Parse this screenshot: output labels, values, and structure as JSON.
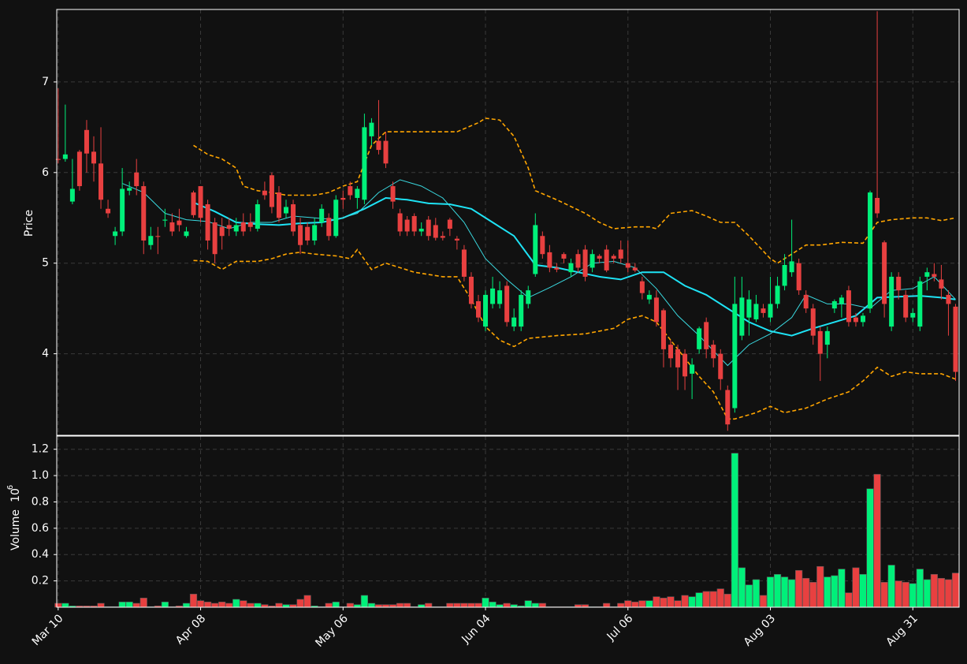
{
  "chart_data": [
    {
      "type": "candlestick",
      "ylabel": "Price",
      "xlim": [
        -0.2,
        126.5
      ],
      "ylim": [
        3.1,
        7.8
      ],
      "yticks": [
        4,
        5,
        6,
        7
      ],
      "grid": true,
      "up_color": "#00f07a",
      "down_color": "#e84040",
      "open": [
        6.15,
        6.15,
        5.68,
        6.23,
        6.47,
        6.23,
        6.1,
        5.6,
        5.3,
        5.35,
        5.8,
        6.0,
        5.85,
        5.2,
        5.3,
        5.47,
        5.45,
        5.47,
        5.3,
        5.78,
        5.85,
        5.65,
        5.45,
        5.4,
        5.42,
        5.35,
        5.45,
        5.45,
        5.38,
        5.8,
        5.97,
        5.78,
        5.55,
        5.65,
        5.42,
        5.4,
        5.25,
        5.45,
        5.5,
        5.3,
        5.72,
        5.85,
        5.72,
        5.7,
        6.4,
        6.35,
        6.35,
        5.85,
        5.55,
        5.48,
        5.52,
        5.35,
        5.48,
        5.42,
        5.3,
        5.48,
        5.27,
        5.15,
        4.85,
        4.58,
        4.3,
        4.55,
        4.55,
        4.75,
        4.3,
        4.3,
        4.55,
        4.88,
        5.3,
        5.12,
        4.95,
        5.1,
        4.9,
        5.1,
        5.15,
        4.95,
        5.08,
        5.15,
        5.08,
        5.15,
        5.0,
        4.95,
        4.8,
        4.6,
        4.62,
        4.48,
        4.1,
        4.05,
        4.0,
        3.78,
        4.05,
        4.35,
        4.1,
        4.0,
        3.6,
        3.4,
        4.2,
        4.4,
        4.38,
        4.5,
        4.4,
        4.55,
        4.75,
        4.9,
        5.0,
        4.65,
        4.5,
        4.25,
        4.1,
        4.5,
        4.55,
        4.7,
        4.4,
        4.35,
        4.5,
        5.72,
        5.23,
        4.3,
        4.85,
        4.65,
        4.4,
        4.3,
        4.85,
        4.88,
        4.82,
        4.65,
        4.52
      ],
      "high": [
        6.93,
        6.75,
        6.15,
        6.25,
        6.58,
        6.4,
        6.5,
        5.7,
        5.4,
        6.05,
        5.9,
        6.15,
        5.9,
        5.4,
        5.4,
        5.6,
        5.55,
        5.6,
        5.4,
        5.8,
        5.85,
        5.7,
        5.5,
        5.5,
        5.5,
        5.5,
        5.55,
        5.55,
        5.7,
        5.9,
        6.0,
        5.85,
        5.7,
        5.7,
        5.5,
        5.45,
        5.5,
        5.65,
        5.55,
        5.75,
        5.8,
        5.9,
        5.85,
        6.65,
        6.6,
        6.8,
        6.45,
        5.9,
        5.6,
        5.52,
        5.55,
        5.45,
        5.52,
        5.5,
        5.35,
        5.5,
        5.3,
        5.2,
        4.9,
        4.65,
        4.7,
        4.85,
        4.8,
        4.8,
        4.5,
        4.7,
        4.75,
        5.55,
        5.35,
        5.2,
        5.0,
        5.12,
        5.05,
        5.15,
        5.2,
        5.15,
        5.1,
        5.2,
        5.1,
        5.25,
        5.25,
        5.0,
        4.85,
        4.7,
        4.7,
        4.5,
        4.15,
        4.1,
        4.05,
        3.95,
        4.3,
        4.4,
        4.15,
        4.05,
        3.65,
        4.85,
        4.85,
        4.7,
        4.65,
        4.55,
        4.85,
        4.85,
        5.1,
        5.48,
        5.05,
        4.7,
        4.55,
        4.3,
        4.3,
        4.6,
        4.65,
        4.75,
        4.45,
        4.45,
        5.8,
        7.78,
        5.25,
        4.9,
        4.9,
        4.7,
        4.5,
        4.85,
        4.95,
        5.0,
        4.98,
        4.7,
        4.55
      ],
      "low": [
        6.1,
        6.12,
        5.65,
        5.8,
        6.0,
        5.9,
        5.6,
        5.5,
        5.2,
        5.3,
        5.75,
        5.75,
        5.1,
        5.15,
        5.1,
        5.4,
        5.3,
        5.35,
        5.28,
        5.5,
        5.45,
        5.15,
        5.0,
        5.15,
        5.3,
        5.3,
        5.3,
        5.35,
        5.35,
        5.7,
        5.55,
        5.45,
        5.5,
        5.3,
        5.1,
        5.2,
        5.2,
        5.4,
        5.25,
        5.28,
        5.6,
        5.7,
        5.6,
        5.65,
        6.3,
        6.2,
        6.05,
        5.6,
        5.3,
        5.3,
        5.3,
        5.3,
        5.25,
        5.25,
        5.25,
        5.3,
        5.15,
        4.8,
        4.5,
        4.35,
        4.25,
        4.5,
        4.5,
        4.3,
        4.25,
        4.25,
        4.5,
        4.85,
        5.05,
        4.9,
        4.9,
        5.0,
        4.85,
        4.9,
        4.8,
        4.9,
        5.0,
        4.9,
        5.0,
        5.0,
        4.9,
        4.9,
        4.6,
        4.55,
        4.3,
        3.85,
        3.85,
        3.6,
        3.6,
        3.5,
        4.0,
        3.95,
        3.85,
        3.6,
        3.15,
        3.35,
        4.15,
        4.2,
        4.35,
        4.4,
        4.35,
        4.5,
        4.7,
        4.85,
        4.65,
        4.45,
        4.1,
        3.7,
        3.95,
        4.45,
        4.4,
        4.3,
        4.3,
        4.3,
        4.45,
        5.5,
        4.4,
        4.25,
        4.6,
        4.35,
        4.35,
        4.25,
        4.7,
        4.8,
        4.6,
        4.2,
        3.7
      ],
      "close": [
        6.14,
        6.2,
        5.82,
        5.85,
        6.21,
        6.1,
        5.7,
        5.55,
        5.35,
        5.82,
        5.83,
        5.85,
        5.25,
        5.3,
        5.29,
        5.48,
        5.35,
        5.42,
        5.35,
        5.53,
        5.5,
        5.25,
        5.1,
        5.3,
        5.38,
        5.42,
        5.35,
        5.4,
        5.65,
        5.75,
        5.62,
        5.5,
        5.62,
        5.35,
        5.2,
        5.25,
        5.42,
        5.6,
        5.3,
        5.7,
        5.7,
        5.75,
        5.82,
        6.5,
        6.55,
        6.25,
        6.1,
        5.68,
        5.35,
        5.35,
        5.35,
        5.38,
        5.3,
        5.28,
        5.28,
        5.38,
        5.25,
        4.85,
        4.55,
        4.4,
        4.65,
        4.72,
        4.7,
        4.35,
        4.4,
        4.65,
        4.7,
        5.42,
        5.1,
        4.95,
        4.93,
        5.05,
        5.0,
        4.95,
        4.85,
        5.1,
        5.05,
        4.92,
        5.05,
        5.05,
        4.95,
        4.92,
        4.67,
        4.65,
        4.35,
        4.05,
        3.95,
        3.85,
        3.75,
        3.88,
        4.28,
        4.05,
        3.95,
        3.72,
        3.22,
        4.55,
        4.62,
        4.6,
        4.55,
        4.45,
        4.55,
        4.75,
        4.98,
        5.02,
        4.7,
        4.5,
        4.2,
        4.0,
        4.25,
        4.58,
        4.62,
        4.35,
        4.35,
        4.42,
        5.78,
        5.55,
        4.55,
        4.85,
        4.7,
        4.4,
        4.45,
        4.8,
        4.9,
        4.85,
        4.72,
        4.55,
        3.8
      ],
      "lines": [
        {
          "color": "#1ee3f5",
          "width": 2,
          "dash": false,
          "x": [
            19,
            22,
            25,
            28,
            31,
            34,
            37,
            40,
            43,
            46,
            49,
            52,
            55,
            58,
            61,
            64,
            67,
            70,
            73,
            76,
            79,
            82,
            85,
            88,
            91,
            94,
            97,
            100,
            103,
            106,
            109,
            112,
            115,
            118,
            121,
            124,
            126
          ],
          "values": [
            5.67,
            5.57,
            5.45,
            5.43,
            5.42,
            5.44,
            5.45,
            5.5,
            5.6,
            5.72,
            5.7,
            5.66,
            5.65,
            5.6,
            5.45,
            5.3,
            4.98,
            4.95,
            4.9,
            4.85,
            4.82,
            4.9,
            4.9,
            4.75,
            4.65,
            4.5,
            4.35,
            4.25,
            4.2,
            4.28,
            4.35,
            4.42,
            4.62,
            4.63,
            4.64,
            4.62,
            4.6
          ]
        },
        {
          "color": "#3ad9e0",
          "width": 1,
          "dash": false,
          "x": [
            9,
            12,
            15,
            18,
            21,
            24,
            27,
            30,
            33,
            36,
            39,
            42,
            45,
            48,
            51,
            54,
            57,
            60,
            63,
            66,
            69,
            72,
            75,
            78,
            81,
            84,
            87,
            90,
            93,
            94,
            97,
            100,
            103,
            105,
            108,
            111,
            114,
            117,
            120,
            123,
            126
          ],
          "values": [
            5.88,
            5.78,
            5.55,
            5.48,
            5.46,
            5.38,
            5.45,
            5.45,
            5.52,
            5.5,
            5.48,
            5.55,
            5.78,
            5.92,
            5.85,
            5.72,
            5.45,
            5.05,
            4.82,
            4.62,
            4.73,
            4.85,
            5.0,
            5.02,
            4.95,
            4.72,
            4.42,
            4.2,
            3.95,
            3.87,
            4.1,
            4.22,
            4.4,
            4.65,
            4.55,
            4.55,
            4.5,
            4.7,
            4.72,
            4.85,
            4.6
          ]
        },
        {
          "color": "#ffa500",
          "width": 1.6,
          "dash": true,
          "x": [
            19,
            21,
            23,
            25,
            26,
            28,
            30,
            32,
            36,
            38,
            40,
            42,
            44,
            46,
            52,
            56,
            59,
            60,
            62,
            64,
            66,
            67,
            70,
            74,
            76,
            78,
            81,
            83,
            84,
            86,
            89,
            91,
            93,
            95,
            97,
            100,
            101,
            103,
            105,
            107,
            110,
            113,
            115,
            117,
            120,
            122,
            124,
            126
          ],
          "values": [
            6.3,
            6.2,
            6.15,
            6.05,
            5.85,
            5.8,
            5.78,
            5.75,
            5.75,
            5.78,
            5.85,
            5.9,
            6.3,
            6.45,
            6.45,
            6.45,
            6.55,
            6.6,
            6.58,
            6.4,
            6.05,
            5.8,
            5.7,
            5.55,
            5.45,
            5.38,
            5.4,
            5.4,
            5.38,
            5.55,
            5.58,
            5.52,
            5.45,
            5.45,
            5.3,
            5.05,
            5.0,
            5.1,
            5.2,
            5.2,
            5.23,
            5.22,
            5.45,
            5.48,
            5.5,
            5.5,
            5.47,
            5.5
          ]
        },
        {
          "color": "#ffa500",
          "width": 1.6,
          "dash": true,
          "x": [
            19,
            21,
            23,
            25,
            28,
            30,
            32,
            34,
            36,
            39,
            41,
            42,
            44,
            46,
            48,
            50,
            54,
            56,
            58,
            60,
            62,
            64,
            66,
            70,
            74,
            78,
            80,
            82,
            84,
            86,
            88,
            90,
            92,
            94,
            95,
            98,
            100,
            102,
            105,
            108,
            111,
            113,
            115,
            117,
            119,
            121,
            124,
            126
          ],
          "values": [
            5.03,
            5.02,
            4.93,
            5.02,
            5.02,
            5.05,
            5.1,
            5.12,
            5.1,
            5.08,
            5.05,
            5.15,
            4.93,
            5.0,
            4.95,
            4.9,
            4.85,
            4.85,
            4.6,
            4.3,
            4.15,
            4.08,
            4.17,
            4.2,
            4.22,
            4.28,
            4.38,
            4.42,
            4.35,
            4.15,
            3.95,
            3.75,
            3.58,
            3.28,
            3.28,
            3.35,
            3.42,
            3.35,
            3.4,
            3.5,
            3.58,
            3.7,
            3.85,
            3.75,
            3.8,
            3.78,
            3.78,
            3.72
          ]
        }
      ]
    },
    {
      "type": "volume",
      "ylabel": "Volume",
      "scale_base": "10",
      "scale_exponent": "6",
      "xlim": [
        -0.2,
        126.5
      ],
      "ylim": [
        0,
        1.3
      ],
      "grid": true,
      "yticks": [
        0.2,
        0.4,
        0.6,
        0.8,
        {
          "value": 1,
          "label": "1.0"
        },
        1.2
      ],
      "xticks": [
        {
          "value": 0,
          "label": "Mar 10"
        },
        {
          "value": 20,
          "label": "Apr 08"
        },
        {
          "value": 40,
          "label": "May 06"
        },
        {
          "value": 60,
          "label": "Jun 04"
        },
        {
          "value": 80,
          "label": "Jul 06"
        },
        {
          "value": 100,
          "label": "Aug 03"
        },
        {
          "value": 120,
          "label": "Aug 31"
        }
      ],
      "values": [
        0.03,
        0.03,
        0.01,
        0.01,
        0.01,
        0.01,
        0.03,
        0.005,
        0.005,
        0.04,
        0.04,
        0.03,
        0.07,
        0.005,
        0.01,
        0.04,
        0.005,
        0.01,
        0.03,
        0.1,
        0.05,
        0.04,
        0.03,
        0.04,
        0.03,
        0.06,
        0.05,
        0.03,
        0.03,
        0.02,
        0.01,
        0.03,
        0.02,
        0.02,
        0.06,
        0.09,
        0.01,
        0.005,
        0.03,
        0.04,
        0.005,
        0.03,
        0.02,
        0.09,
        0.03,
        0.02,
        0.02,
        0.02,
        0.03,
        0.03,
        0.005,
        0.02,
        0.03,
        0.005,
        0.005,
        0.03,
        0.03,
        0.03,
        0.03,
        0.03,
        0.07,
        0.04,
        0.02,
        0.03,
        0.02,
        0.01,
        0.05,
        0.03,
        0.03,
        0.005,
        0.005,
        0.005,
        0.005,
        0.02,
        0.02,
        0.005,
        0.005,
        0.03,
        0.005,
        0.03,
        0.05,
        0.04,
        0.05,
        0.05,
        0.08,
        0.07,
        0.08,
        0.05,
        0.09,
        0.08,
        0.11,
        0.12,
        0.12,
        0.14,
        0.1,
        1.17,
        0.3,
        0.17,
        0.21,
        0.09,
        0.23,
        0.25,
        0.23,
        0.21,
        0.28,
        0.22,
        0.19,
        0.31,
        0.23,
        0.24,
        0.29,
        0.11,
        0.3,
        0.25,
        0.9,
        1.01,
        0.19,
        0.32,
        0.2,
        0.19,
        0.18,
        0.29,
        0.21,
        0.25,
        0.22,
        0.21,
        0.26
      ]
    }
  ]
}
